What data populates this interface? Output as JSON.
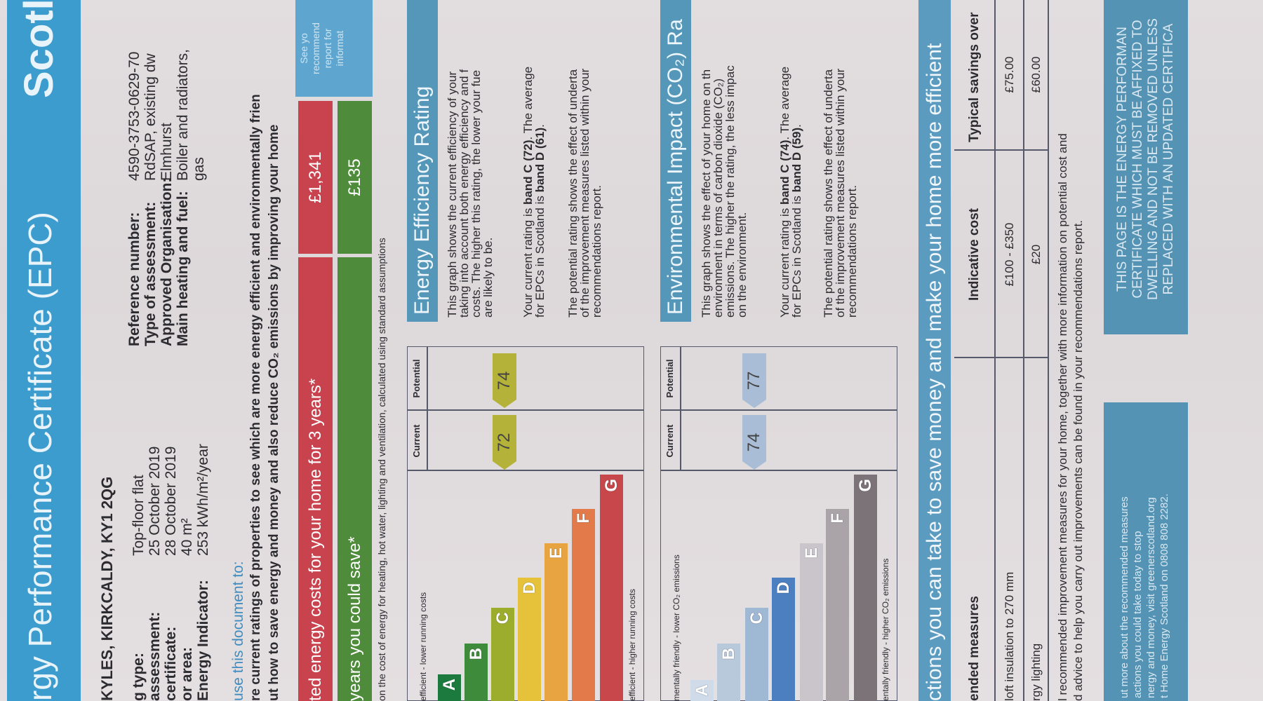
{
  "header": {
    "title": "rgy Performance Certificate (EPC)",
    "region": "Scotla"
  },
  "address": "KYLES, KIRKCALDY, KY1 2QG",
  "property": [
    {
      "label": "g type:",
      "value": "Top-floor flat"
    },
    {
      "label": "assessment:",
      "value": "25 October 2019"
    },
    {
      "label": "certificate:",
      "value": "28 October 2019"
    },
    {
      "label": "or area:",
      "value": "40 m²"
    },
    {
      "label": "Energy Indicator:",
      "value": "253 kWh/m²/year"
    }
  ],
  "assessment": [
    {
      "label": "Reference number:",
      "value": "4590-3753-0629-70"
    },
    {
      "label": "Type of assessment:",
      "value": "RdSAP, existing dw"
    },
    {
      "label": "Approved Organisation:",
      "value": "Elmhurst"
    },
    {
      "label": "Main heating and fuel:",
      "value": "Boiler and radiators,"
    },
    {
      "label": "",
      "value": "gas"
    }
  ],
  "use_heading": "use this document to:",
  "intro": [
    "re current ratings of properties to see which are more energy efficient and environmentally frien",
    "ut how to save energy and money and also reduce CO₂ emissions by improving your home"
  ],
  "costs": {
    "label": "ted energy costs for your home for 3 years*",
    "value": "£1,341"
  },
  "savings": {
    "label": "years you could save*",
    "value": "£135"
  },
  "see_box": [
    "See yo",
    "recommend",
    "report for",
    "informat"
  ],
  "footnote": "on the cost of energy for heating, hot water, lighting and ventilation, calculated using standard assumptions",
  "energy_chart": {
    "top_label": "efficient - lower running costs",
    "bottom_label": "efficient - higher running costs",
    "col_current": "Current",
    "col_potential": "Potential",
    "bands": [
      "A",
      "B",
      "C",
      "D",
      "E",
      "F",
      "G"
    ],
    "colors": [
      "#1d7a3e",
      "#3f8b3c",
      "#9cac2d",
      "#e6c23b",
      "#e8a441",
      "#e27a49",
      "#c8474b"
    ],
    "current": "72",
    "potential": "74",
    "marker_color": "#b5b23a"
  },
  "energy_text": {
    "heading": "Energy Efficiency Rating",
    "p1": [
      "This graph shows the current efficiency of your",
      "taking into account both energy efficiency and f",
      "costs. The higher this rating, the lower your fue",
      "are likely to be."
    ],
    "p2a": "Your current rating is ",
    "p2b": "band C (72)",
    "p2c": ". The average",
    "p2d": "for EPCs in Scotland is ",
    "p2e": "band D (61)",
    "p2f": ".",
    "p3": [
      "The potential rating shows the effect of underta",
      "of the improvement measures listed within your",
      "recommendations report."
    ]
  },
  "env_chart": {
    "top_label": "mentally friendly - lower CO₂ emissions",
    "bottom_label": "entally friendly - higher CO₂ emissions",
    "col_current": "Current",
    "col_potential": "Potential",
    "bands": [
      "A",
      "B",
      "C",
      "D",
      "E",
      "F",
      "G"
    ],
    "colors": [
      "#cfdbe8",
      "#b8c9dc",
      "#9fb8d4",
      "#4c7fc0",
      "#c9c5ca",
      "#aaa3a8",
      "#7c7379"
    ],
    "current": "74",
    "potential": "77",
    "marker_color": "#a9bdd6"
  },
  "env_text": {
    "heading": "Environmental Impact (CO₂) Ra",
    "p1": [
      "This graph shows the effect of your home on th",
      "environment in terms of carbon dioxide (CO₂)",
      "emissions. The higher the rating, the less impac",
      "on the environment."
    ],
    "p2a": "Your current rating is ",
    "p2b": "band C (74)",
    "p2c": ". The average",
    "p2d": "for EPCs in Scotland is ",
    "p2e": "band D (59)",
    "p2f": ".",
    "p3": [
      "The potential rating shows the effect of underta",
      "of the improvement measures listed within your",
      "recommendations report."
    ]
  },
  "actions_heading": "ctions you can take to save money and make your home more efficient",
  "table": {
    "headers": [
      "ended measures",
      "Indicative cost",
      "Typical savings over"
    ],
    "rows": [
      [
        "loft insulation to 270 mm",
        "£100 - £350",
        "£75.00"
      ],
      [
        "rgy lighting",
        "£20",
        "£60.00"
      ]
    ]
  },
  "recommend_note": [
    "l recommended improvement measures for your home, together with more information on potential cost and",
    "d advice to help you carry out improvements can be found in your recommendations report."
  ],
  "info_box": [
    "ut more about the recommended measures",
    "actions you could take today to stop",
    "nergy and money, visit greenerscotland.org",
    "t Home Energy Scotland on 0808 808 2282."
  ],
  "notice_box": [
    "THIS PAGE IS THE ENERGY PERFORMAN",
    "CERTIFICATE WHICH MUST BE AFFIXED TO",
    "DWELLING AND NOT BE REMOVED UNLESS",
    "REPLACED WITH AN UPDATED CERTIFICA"
  ]
}
